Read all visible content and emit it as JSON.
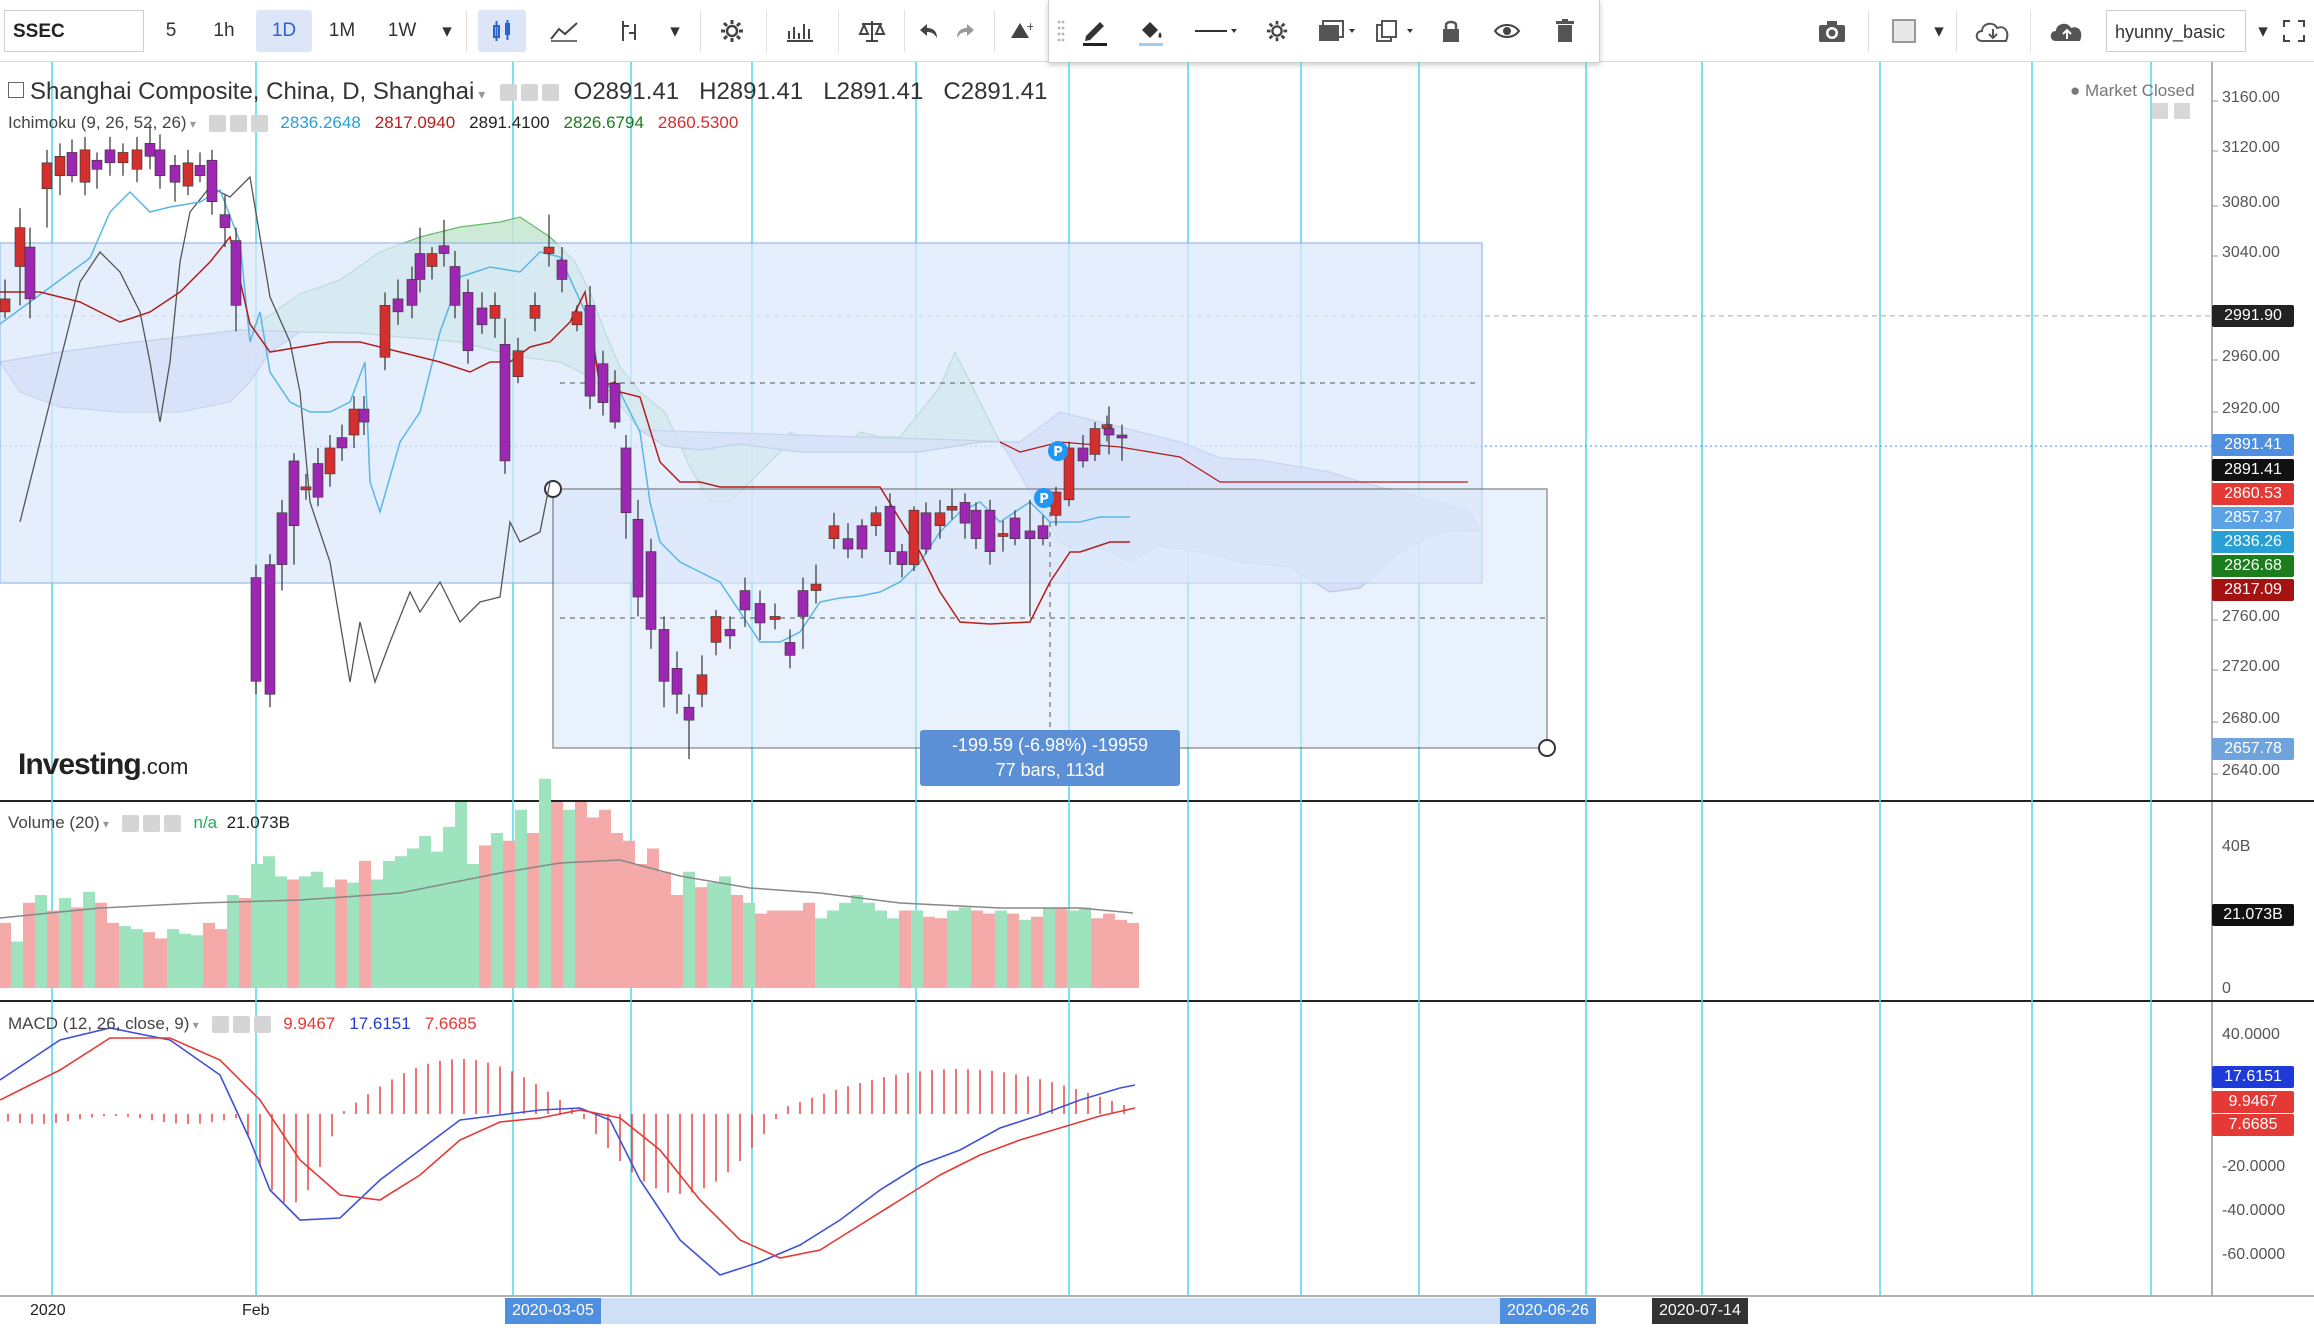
{
  "toolbar": {
    "symbol": "SSEC",
    "intervals": [
      "5",
      "1h",
      "1D",
      "1M",
      "1W"
    ],
    "active_interval": "1D",
    "icons": [
      "candles-icon",
      "line-chart-icon",
      "indicators-icon",
      "dropdown-icon",
      "settings-icon",
      "bars-icon",
      "compare-icon",
      "undo-icon",
      "redo-icon",
      "alert-icon"
    ],
    "right_icons": [
      "camera-icon",
      "layout-icon",
      "cloud-download-icon",
      "cloud-upload-icon"
    ],
    "user": "hyunny_basic",
    "fullscreen_icon": "fullscreen-icon"
  },
  "drawing_toolbar": {
    "icons": [
      "pencil-icon",
      "fill-icon",
      "line-style-icon",
      "gear-icon",
      "layers-icon",
      "clone-icon",
      "lock-icon",
      "eye-icon",
      "trash-icon"
    ]
  },
  "main_legend": {
    "title": "Shanghai Composite, China, D, Shanghai",
    "ohlc": [
      {
        "k": "O",
        "v": "2891.41"
      },
      {
        "k": "H",
        "v": "2891.41"
      },
      {
        "k": "L",
        "v": "2891.41"
      },
      {
        "k": "C",
        "v": "2891.41"
      }
    ],
    "market_status": "Market Closed"
  },
  "ichimoku_legend": {
    "label": "Ichimoku (9, 26, 52, 26)",
    "values": [
      {
        "v": "2836.2648",
        "color": "#2a9fd6"
      },
      {
        "v": "2817.0940",
        "color": "#b71c1c"
      },
      {
        "v": "2891.4100",
        "color": "#222222"
      },
      {
        "v": "2826.6794",
        "color": "#1b7d1b"
      },
      {
        "v": "2860.5300",
        "color": "#d32f2f"
      }
    ]
  },
  "volume_legend": {
    "label": "Volume (20)",
    "na": "n/a",
    "value": "21.073B"
  },
  "macd_legend": {
    "label": "MACD (12, 26, close, 9)",
    "values": [
      {
        "v": "9.9467",
        "color": "#e53935"
      },
      {
        "v": "17.6151",
        "color": "#1e3ad8"
      },
      {
        "v": "7.6685",
        "color": "#e53935"
      }
    ]
  },
  "measure_tooltip": {
    "line1": "-199.59 (-6.98%) -19959",
    "line2": "77 bars, 113d"
  },
  "logo": {
    "bold": "Investing",
    "suffix": ".com"
  },
  "price_axis": {
    "ticks": [
      "3160.00",
      "3120.00",
      "3080.00",
      "3040.00",
      "2960.00",
      "2920.00",
      "2760.00",
      "2720.00",
      "2680.00",
      "2640.00"
    ],
    "tags": [
      {
        "label": "2991.90",
        "bg": "#222222"
      },
      {
        "label": "2891.41",
        "bg": "#4f8fe0"
      },
      {
        "label": "2891.41",
        "bg": "#111111"
      },
      {
        "label": "2860.53",
        "bg": "#e53935"
      },
      {
        "label": "2857.37",
        "bg": "#5ba3e6"
      },
      {
        "label": "2836.26",
        "bg": "#2a9fd6"
      },
      {
        "label": "2826.68",
        "bg": "#1b7d1b"
      },
      {
        "label": "2817.09",
        "bg": "#a51212"
      },
      {
        "label": "2657.78",
        "bg": "#6fa3dc"
      }
    ]
  },
  "volume_axis": {
    "ticks": [
      "40B",
      "0"
    ],
    "tag": "21.073B"
  },
  "macd_axis": {
    "ticks": [
      "40.0000",
      "-20.0000",
      "-40.0000",
      "-60.0000"
    ],
    "tags": [
      {
        "label": "17.6151",
        "bg": "#1e3ad8"
      },
      {
        "label": "9.9467",
        "bg": "#e53935"
      },
      {
        "label": "7.6685",
        "bg": "#e53935"
      }
    ]
  },
  "time_axis": {
    "labels": [
      "2020",
      "Feb"
    ],
    "highlight_start": "2020-03-05",
    "highlight_end": "2020-06-26",
    "cursor_date": "2020-07-14"
  },
  "colors": {
    "up": "#d32f2f",
    "down": "#9c27b0",
    "vline": "#4dd9e8",
    "cloud_bull": "#c6e6cf",
    "cloud_bear": "#c9cdf3",
    "rect_fill": "#dbe9fb",
    "vol_up": "#f3aaa8",
    "vol_down": "#9de3bd"
  }
}
